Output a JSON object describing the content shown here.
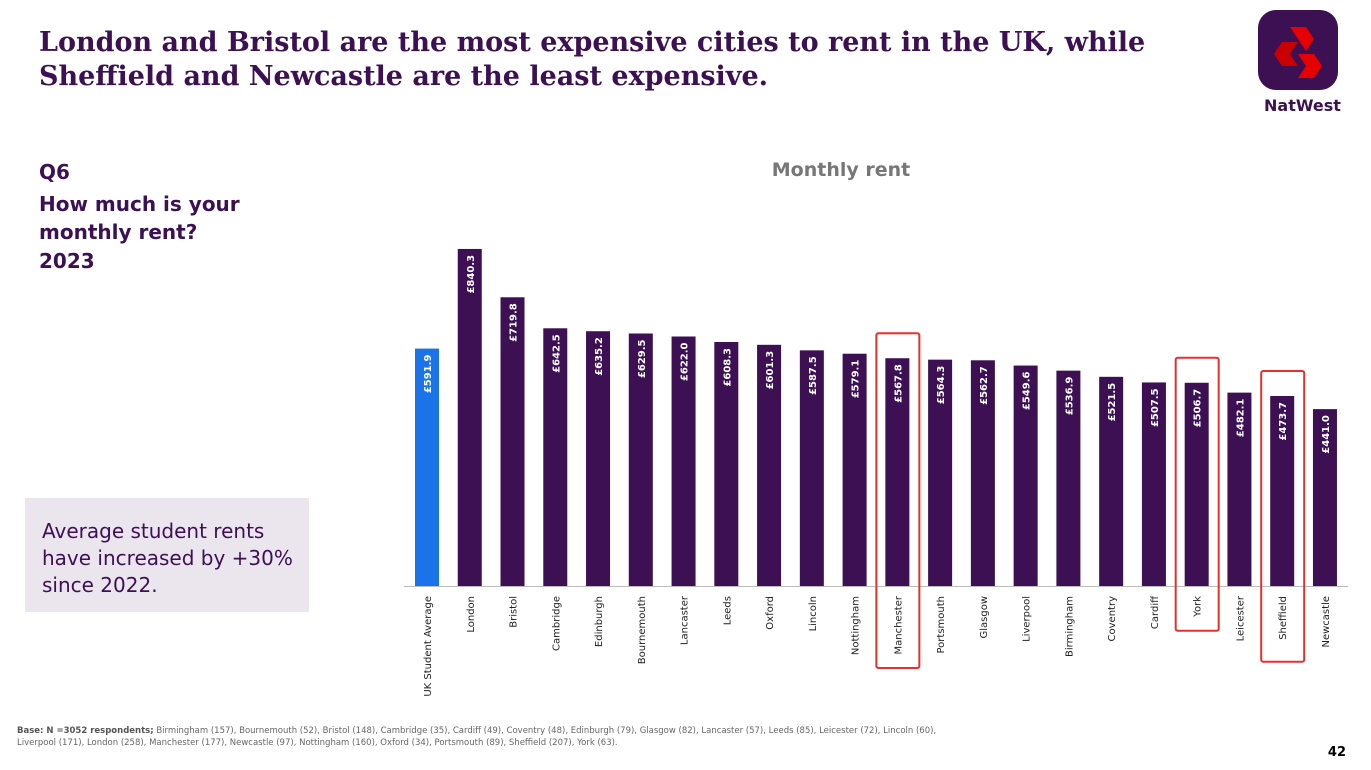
{
  "title": "London and Bristol are the most expensive cities to rent in the UK, while Sheffield and Newcastle are the least expensive.",
  "question": {
    "number": "Q6",
    "text_line1": "How much is your",
    "text_line2": "monthly rent?",
    "year": "2023"
  },
  "callout": "Average student rents have increased by +30% since 2022.",
  "footnote": {
    "bold": "Base: N =3052 respondents;",
    "text": " Birmingham (157),  Bournemouth (52), Bristol (148), Cambridge (35), Cardiff (49), Coventry (48),  Edinburgh (79), Glasgow (82), Lancaster (57), Leeds (85), Leicester (72), Lincoln (60), Liverpool (171), London (258), Manchester (177), Newcastle (97), Nottingham (160), Oxford (34), Portsmouth (89), Sheffield (207), York (63)."
  },
  "page_number": "42",
  "brand": {
    "name": "NatWest",
    "colors": {
      "purple": "#3c1053",
      "red": "#e60000"
    }
  },
  "chart_data": {
    "type": "bar",
    "title": "Monthly rent",
    "categories": [
      "UK Student Average",
      "London",
      "Bristol",
      "Cambridge",
      "Edinburgh",
      "Bournemouth",
      "Lancaster",
      "Leeds",
      "Oxford",
      "Lincoln",
      "Nottingham",
      "Manchester",
      "Portsmouth",
      "Glasgow",
      "Liverpool",
      "Birmingham",
      "Coventry",
      "Cardiff",
      "York",
      "Leicester",
      "Sheffield",
      "Newcastle"
    ],
    "values": [
      591.9,
      840.3,
      719.8,
      642.5,
      635.2,
      629.5,
      622.0,
      608.3,
      601.3,
      587.5,
      579.1,
      567.8,
      564.3,
      562.7,
      549.6,
      536.9,
      521.5,
      507.5,
      506.7,
      482.1,
      473.7,
      441.0
    ],
    "value_labels": [
      "£591.9",
      "£840.3",
      "£719.8",
      "£642.5",
      "£635.2",
      "£629.5",
      "£622.0",
      "£608.3",
      "£601.3",
      "£587.5",
      "£579.1",
      "£567.8",
      "£564.3",
      "£562.7",
      "£549.6",
      "£536.9",
      "£521.5",
      "£507.5",
      "£506.7",
      "£482.1",
      "£473.7",
      "£441.0"
    ],
    "colors": {
      "average": "#1a73e8",
      "city": "#3c1053",
      "highlight_box": "#e8302a"
    },
    "highlighted": [
      "Manchester",
      "York",
      "Sheffield"
    ],
    "xlabel": "",
    "ylabel": "",
    "ylim": [
      0,
      900
    ],
    "grid": false,
    "legend": "none"
  }
}
